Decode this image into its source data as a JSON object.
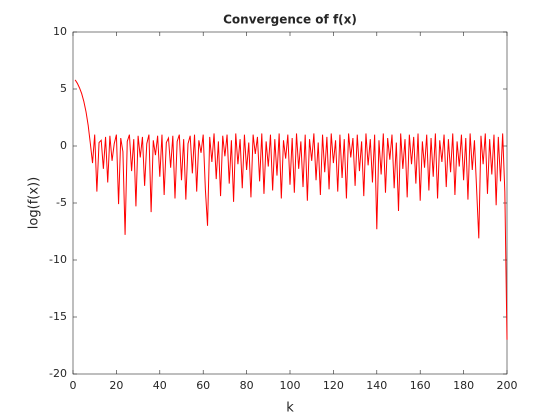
{
  "chart_data": {
    "type": "line",
    "title": "Convergence of f(x)",
    "x_label": "k",
    "y_label": "log(f(x))",
    "x": [
      1,
      2,
      3,
      4,
      5,
      6,
      7,
      8,
      9,
      10,
      11,
      12,
      13,
      14,
      15,
      16,
      17,
      18,
      19,
      20,
      21,
      22,
      23,
      24,
      25,
      26,
      27,
      28,
      29,
      30,
      31,
      32,
      33,
      34,
      35,
      36,
      37,
      38,
      39,
      40,
      41,
      42,
      43,
      44,
      45,
      46,
      47,
      48,
      49,
      50,
      51,
      52,
      53,
      54,
      55,
      56,
      57,
      58,
      59,
      60,
      61,
      62,
      63,
      64,
      65,
      66,
      67,
      68,
      69,
      70,
      71,
      72,
      73,
      74,
      75,
      76,
      77,
      78,
      79,
      80,
      81,
      82,
      83,
      84,
      85,
      86,
      87,
      88,
      89,
      90,
      91,
      92,
      93,
      94,
      95,
      96,
      97,
      98,
      99,
      100,
      101,
      102,
      103,
      104,
      105,
      106,
      107,
      108,
      109,
      110,
      111,
      112,
      113,
      114,
      115,
      116,
      117,
      118,
      119,
      120,
      121,
      122,
      123,
      124,
      125,
      126,
      127,
      128,
      129,
      130,
      131,
      132,
      133,
      134,
      135,
      136,
      137,
      138,
      139,
      140,
      141,
      142,
      143,
      144,
      145,
      146,
      147,
      148,
      149,
      150,
      151,
      152,
      153,
      154,
      155,
      156,
      157,
      158,
      159,
      160,
      161,
      162,
      163,
      164,
      165,
      166,
      167,
      168,
      169,
      170,
      171,
      172,
      173,
      174,
      175,
      176,
      177,
      178,
      179,
      180,
      181,
      182,
      183,
      184,
      185,
      186,
      187,
      188,
      189,
      190,
      191,
      192,
      193,
      194,
      195,
      196,
      197,
      198,
      199,
      200
    ],
    "series": [
      {
        "color": "#ff0000",
        "values": [
          5.8,
          5.5,
          5.1,
          4.6,
          3.9,
          3.0,
          1.8,
          0.2,
          -1.5,
          1.0,
          -4.0,
          0.3,
          0.5,
          -2.0,
          0.8,
          -3.2,
          0.9,
          -1.3,
          0.2,
          1.0,
          -5.1,
          0.7,
          -0.5,
          -7.8,
          0.4,
          1.0,
          -2.2,
          0.6,
          -5.3,
          0.9,
          -1.0,
          0.8,
          -3.5,
          0.2,
          1.0,
          -5.8,
          0.5,
          -0.8,
          0.9,
          -2.7,
          1.0,
          -4.3,
          0.3,
          0.7,
          -1.9,
          0.9,
          -4.6,
          0.4,
          1.0,
          -3.0,
          0.6,
          -4.7,
          0.2,
          0.9,
          -2.4,
          1.0,
          -4.0,
          0.5,
          -0.6,
          1.0,
          -3.8,
          -7.0,
          0.8,
          -1.4,
          1.1,
          -2.9,
          0.4,
          -4.4,
          0.9,
          -0.9,
          1.0,
          -3.3,
          0.5,
          -4.9,
          1.1,
          -1.6,
          0.6,
          -3.7,
          1.0,
          -2.1,
          0.3,
          -4.5,
          1.0,
          -0.7,
          0.8,
          -3.1,
          1.1,
          -4.2,
          0.4,
          -1.8,
          1.0,
          -3.9,
          0.6,
          -2.6,
          1.1,
          -4.6,
          0.5,
          -1.1,
          1.0,
          -3.4,
          0.7,
          -4.1,
          1.1,
          -2.0,
          0.4,
          -3.6,
          1.0,
          -4.8,
          0.6,
          -1.3,
          1.1,
          -3.0,
          0.3,
          -4.3,
          1.0,
          -2.3,
          0.8,
          -3.8,
          1.1,
          -1.5,
          0.5,
          -4.0,
          1.0,
          -2.8,
          0.6,
          -4.6,
          1.1,
          -1.0,
          0.7,
          -3.5,
          1.0,
          -2.2,
          0.4,
          -4.4,
          1.1,
          -1.7,
          0.6,
          -3.2,
          1.0,
          -7.3,
          0.5,
          -2.5,
          1.1,
          -4.1,
          0.7,
          -1.2,
          1.0,
          -3.7,
          0.3,
          -5.7,
          1.1,
          -2.0,
          0.6,
          -4.5,
          1.0,
          -1.6,
          0.8,
          -3.3,
          1.1,
          -4.8,
          0.4,
          -1.9,
          1.0,
          -3.9,
          0.7,
          -2.7,
          1.1,
          -4.6,
          0.5,
          -1.4,
          1.0,
          -3.6,
          0.6,
          -2.3,
          1.1,
          -4.3,
          0.4,
          -1.8,
          1.0,
          -3.0,
          0.7,
          -4.7,
          1.1,
          -2.1,
          0.5,
          -3.8,
          -8.1,
          0.9,
          -1.6,
          1.1,
          -4.2,
          0.6,
          -2.5,
          1.0,
          -5.2,
          0.8,
          -3.1,
          1.1,
          -4.0,
          -17.0
        ]
      }
    ],
    "xlim": [
      0,
      200
    ],
    "xticks": [
      0,
      20,
      40,
      60,
      80,
      100,
      120,
      140,
      160,
      180,
      200
    ],
    "ylim": [
      -20,
      10
    ],
    "yticks": [
      -20,
      -15,
      -10,
      -5,
      0,
      5,
      10
    ]
  }
}
